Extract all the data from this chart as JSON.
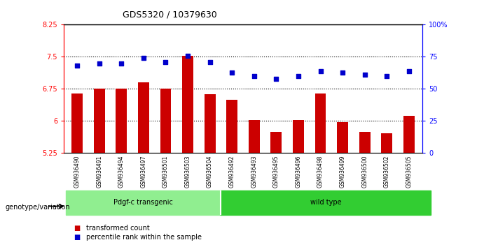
{
  "title": "GDS5320 / 10379630",
  "samples": [
    "GSM936490",
    "GSM936491",
    "GSM936494",
    "GSM936497",
    "GSM936501",
    "GSM936503",
    "GSM936504",
    "GSM936492",
    "GSM936493",
    "GSM936495",
    "GSM936496",
    "GSM936498",
    "GSM936499",
    "GSM936500",
    "GSM936502",
    "GSM936505"
  ],
  "transformed_count": [
    6.65,
    6.75,
    6.75,
    6.9,
    6.75,
    7.52,
    6.62,
    6.5,
    6.02,
    5.75,
    6.02,
    6.65,
    5.98,
    5.75,
    5.72,
    6.12
  ],
  "percentile_rank": [
    68,
    70,
    70,
    74,
    71,
    76,
    71,
    63,
    60,
    58,
    60,
    64,
    63,
    61,
    60,
    64
  ],
  "groups": [
    "Pdgf-c transgenic",
    "Pdgf-c transgenic",
    "Pdgf-c transgenic",
    "Pdgf-c transgenic",
    "Pdgf-c transgenic",
    "Pdgf-c transgenic",
    "Pdgf-c transgenic",
    "wild type",
    "wild type",
    "wild type",
    "wild type",
    "wild type",
    "wild type",
    "wild type",
    "wild type",
    "wild type"
  ],
  "group_labels": [
    "Pdgf-c transgenic",
    "wild type"
  ],
  "group_colors": [
    "#90EE90",
    "#00CC00"
  ],
  "bar_color": "#CC0000",
  "dot_color": "#0000CC",
  "ylim_left": [
    5.25,
    8.25
  ],
  "ylim_right": [
    0,
    100
  ],
  "yticks_left": [
    5.25,
    6.0,
    6.75,
    7.5,
    8.25
  ],
  "yticks_right": [
    0,
    25,
    50,
    75,
    100
  ],
  "ytick_labels_left": [
    "5.25",
    "6",
    "6.75",
    "7.5",
    "8.25"
  ],
  "ytick_labels_right": [
    "0",
    "25",
    "50",
    "75",
    "100%"
  ],
  "grid_values": [
    6.0,
    6.75,
    7.5
  ],
  "xlabel": "genotype/variation",
  "legend_items": [
    "transformed count",
    "percentile rank within the sample"
  ],
  "background_color": "#ffffff",
  "plot_bg": "#ffffff",
  "tick_area_bg": "#d0d0d0"
}
